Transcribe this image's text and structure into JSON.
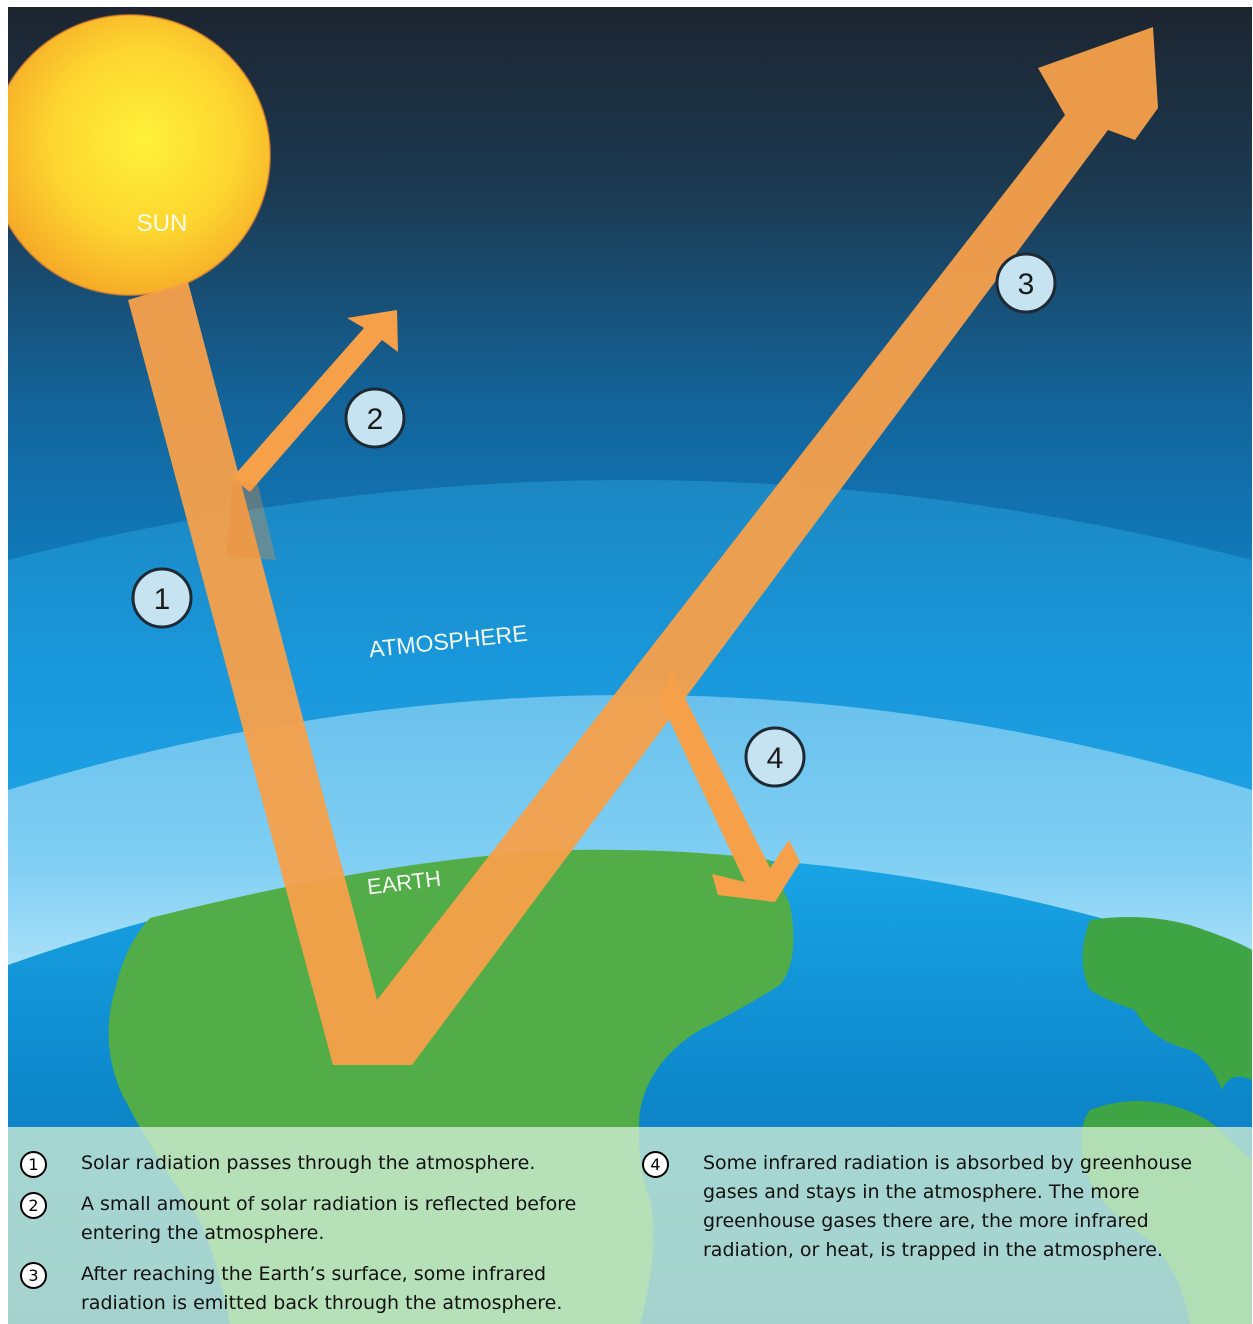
{
  "labels": {
    "sun": "SUN",
    "atmosphere": "ATMOSPHERE",
    "earth": "EARTH"
  },
  "markers": [
    {
      "num": "1"
    },
    {
      "num": "2"
    },
    {
      "num": "3"
    },
    {
      "num": "4"
    }
  ],
  "legend": [
    {
      "num": "1",
      "text": "Solar radiation passes through the atmosphere."
    },
    {
      "num": "2",
      "text": "A small amount of solar radiation is reflected before entering the atmosphere."
    },
    {
      "num": "3",
      "text": "After reaching the Earth’s surface, some infrared radiation is emitted back through the atmosphere."
    },
    {
      "num": "4",
      "text": "Some infrared radiation is absorbed by greenhouse gases and stays in the atmosphere. The more greenhouse gases there are, the more infrared radiation, or heat, is trapped in the atmosphere."
    }
  ],
  "colors": {
    "sky_top": "#1f2a36",
    "sky_mid": "#1275b8",
    "sky_bottom": "#1ea8ea",
    "sun": "#fbd42e",
    "arrow": "#f7a04a",
    "earth": "#52ad48",
    "ocean": "#0e8bd0"
  }
}
